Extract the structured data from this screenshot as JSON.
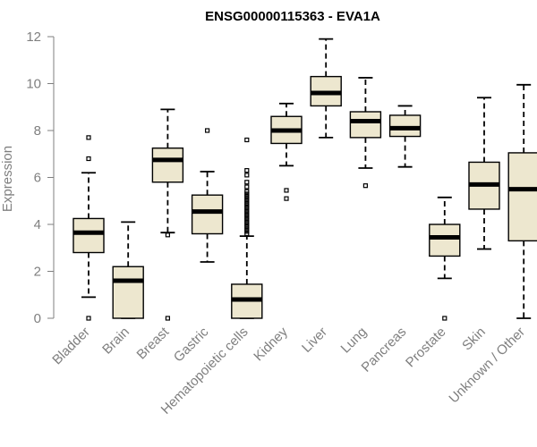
{
  "chart_data": {
    "type": "boxplot",
    "title": "ENSG00000115363 - EVA1A",
    "xlabel": "",
    "ylabel": "Expression",
    "ylim": [
      0,
      12
    ],
    "yticks": [
      0,
      2,
      4,
      6,
      8,
      10,
      12
    ],
    "box_color": "#ede7cf",
    "categories": [
      "Bladder",
      "Brain",
      "Breast",
      "Gastric",
      "Hematopoietic cells",
      "Kidney",
      "Liver",
      "Lung",
      "Pancreas",
      "Prostate",
      "Skin",
      "Unknown / Other"
    ],
    "boxes": [
      {
        "label": "Bladder",
        "min": 0.9,
        "q1": 2.8,
        "median": 3.65,
        "q3": 4.25,
        "max": 6.2,
        "outliers": [
          0.0,
          6.8,
          7.7
        ]
      },
      {
        "label": "Brain",
        "min": 0.0,
        "q1": 0.0,
        "median": 1.6,
        "q3": 2.2,
        "max": 4.1,
        "outliers": []
      },
      {
        "label": "Breast",
        "min": 3.65,
        "q1": 5.8,
        "median": 6.75,
        "q3": 7.25,
        "max": 8.9,
        "outliers": [
          0.0,
          3.55
        ]
      },
      {
        "label": "Gastric",
        "min": 2.4,
        "q1": 3.6,
        "median": 4.55,
        "q3": 5.25,
        "max": 6.25,
        "outliers": [
          8.0
        ]
      },
      {
        "label": "Hematopoietic cells",
        "min": 0.0,
        "q1": 0.0,
        "median": 0.8,
        "q3": 1.45,
        "max": 3.5,
        "outliers": [
          3.6,
          3.7,
          3.8,
          3.9,
          4.0,
          4.1,
          4.2,
          4.3,
          4.4,
          4.5,
          4.6,
          4.7,
          4.8,
          4.9,
          5.0,
          5.1,
          5.2,
          5.3,
          5.4,
          5.6,
          5.8,
          6.1,
          6.3,
          7.6
        ]
      },
      {
        "label": "Kidney",
        "min": 6.5,
        "q1": 7.45,
        "median": 8.0,
        "q3": 8.6,
        "max": 9.15,
        "outliers": [
          5.1,
          5.45
        ]
      },
      {
        "label": "Liver",
        "min": 7.7,
        "q1": 9.05,
        "median": 9.6,
        "q3": 10.3,
        "max": 11.9,
        "outliers": []
      },
      {
        "label": "Lung",
        "min": 6.4,
        "q1": 7.7,
        "median": 8.4,
        "q3": 8.8,
        "max": 10.25,
        "outliers": [
          5.65
        ]
      },
      {
        "label": "Pancreas",
        "min": 6.45,
        "q1": 7.75,
        "median": 8.1,
        "q3": 8.65,
        "max": 9.05,
        "outliers": []
      },
      {
        "label": "Prostate",
        "min": 1.7,
        "q1": 2.65,
        "median": 3.45,
        "q3": 4.0,
        "max": 5.15,
        "outliers": [
          0.0
        ]
      },
      {
        "label": "Skin",
        "min": 2.95,
        "q1": 4.65,
        "median": 5.7,
        "q3": 6.65,
        "max": 9.4,
        "outliers": []
      },
      {
        "label": "Unknown / Other",
        "min": 0.0,
        "q1": 3.3,
        "median": 5.5,
        "q3": 7.05,
        "max": 9.95,
        "outliers": []
      }
    ]
  }
}
